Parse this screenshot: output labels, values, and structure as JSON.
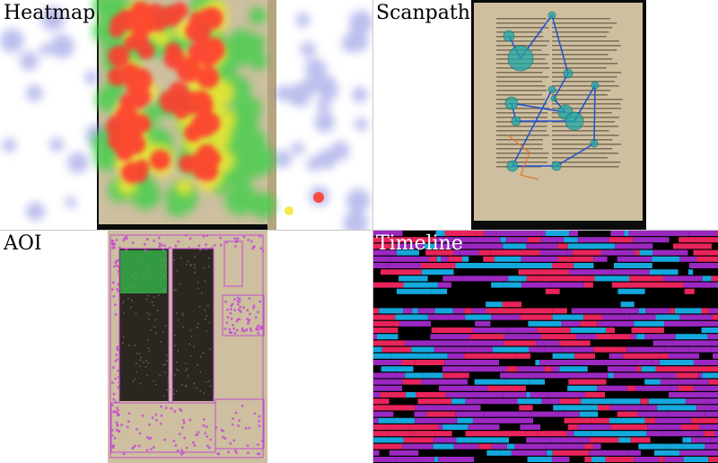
{
  "panels": {
    "heatmap": {
      "title": "Heatmap"
    },
    "scanpath": {
      "title": "Scanpath"
    },
    "aoi": {
      "title": "AOI"
    },
    "timeline": {
      "title": "Timeline"
    }
  },
  "colors": {
    "heat_hot": "#ff3b2f",
    "heat_mid": "#f5e633",
    "heat_cool": "#3fcf4a",
    "heat_faint": "#6b6fd8",
    "scan_fixation": "#1fa8a8",
    "scan_path": "#1e4fd1",
    "scan_path_alt": "#e07a2a",
    "aoi_box": "#c64bd6",
    "aoi_green": "#37b84a",
    "timeline_red": "#e8245a",
    "timeline_purple": "#9b28c0",
    "timeline_cyan": "#14a8dd",
    "timeline_bg": "#000000",
    "parchment": "#cdbf9f",
    "parchment_dark": "#b7a57f",
    "ink": "#3b2a20",
    "backdrop": "#0b0b0b"
  }
}
